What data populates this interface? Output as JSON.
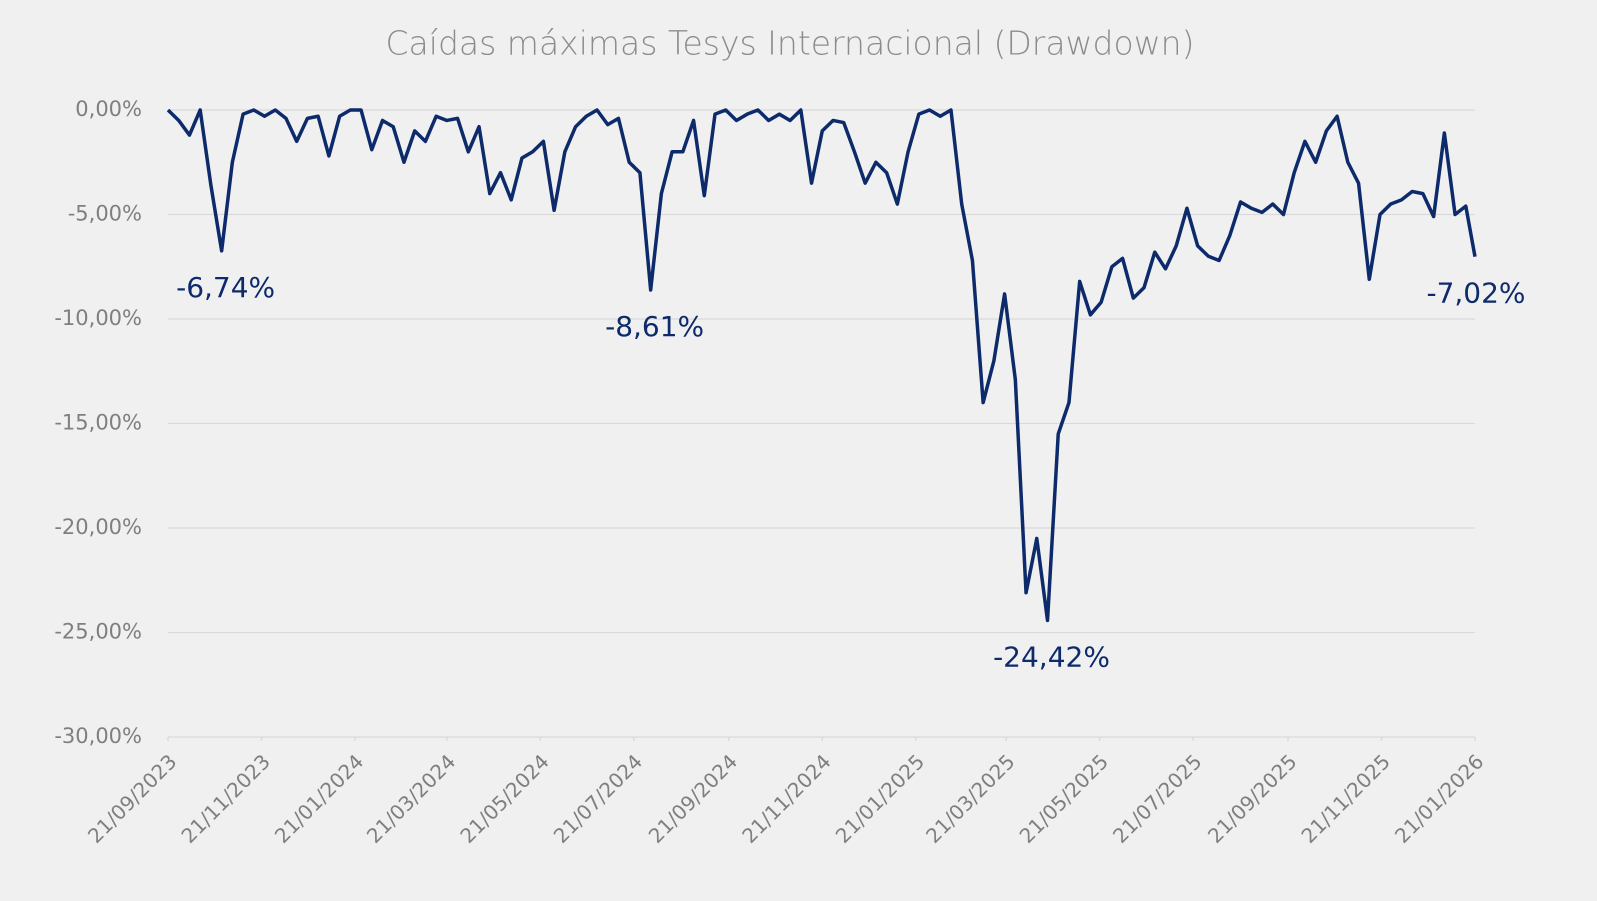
{
  "chart_data": {
    "type": "line",
    "title": "Caídas máximas Tesys Internacional (Drawdown)",
    "color": "#0d2a6b",
    "grid": true,
    "x": [
      "2023-09-21",
      "2023-09-28",
      "2023-10-05",
      "2023-10-12",
      "2023-10-19",
      "2023-10-26",
      "2023-11-02",
      "2023-11-09",
      "2023-11-16",
      "2023-11-23",
      "2023-11-30",
      "2023-12-07",
      "2023-12-14",
      "2023-12-21",
      "2023-12-28",
      "2024-01-04",
      "2024-01-11",
      "2024-01-18",
      "2024-01-25",
      "2024-02-01",
      "2024-02-08",
      "2024-02-15",
      "2024-02-22",
      "2024-02-29",
      "2024-03-07",
      "2024-03-14",
      "2024-03-21",
      "2024-03-28",
      "2024-04-04",
      "2024-04-11",
      "2024-04-18",
      "2024-04-25",
      "2024-05-02",
      "2024-05-09",
      "2024-05-16",
      "2024-05-23",
      "2024-05-30",
      "2024-06-06",
      "2024-06-13",
      "2024-06-20",
      "2024-06-27",
      "2024-07-04",
      "2024-07-11",
      "2024-07-18",
      "2024-07-25",
      "2024-08-01",
      "2024-08-08",
      "2024-08-15",
      "2024-08-22",
      "2024-08-29",
      "2024-09-05",
      "2024-09-12",
      "2024-09-19",
      "2024-09-26",
      "2024-10-03",
      "2024-10-10",
      "2024-10-17",
      "2024-10-24",
      "2024-10-31",
      "2024-11-07",
      "2024-11-14",
      "2024-11-21",
      "2024-11-28",
      "2024-12-05",
      "2024-12-12",
      "2024-12-19",
      "2024-12-26",
      "2025-01-02",
      "2025-01-09",
      "2025-01-16",
      "2025-01-23",
      "2025-01-30",
      "2025-02-06",
      "2025-02-13",
      "2025-02-20",
      "2025-02-27",
      "2025-03-06",
      "2025-03-13",
      "2025-03-20",
      "2025-03-27",
      "2025-04-03",
      "2025-04-10",
      "2025-04-17",
      "2025-04-24",
      "2025-05-01",
      "2025-05-08",
      "2025-05-15",
      "2025-05-22",
      "2025-05-29",
      "2025-06-05",
      "2025-06-12",
      "2025-06-19",
      "2025-06-26",
      "2025-07-03",
      "2025-07-10",
      "2025-07-17",
      "2025-07-24",
      "2025-07-31",
      "2025-08-07",
      "2025-08-14",
      "2025-08-21",
      "2025-08-28",
      "2025-09-04",
      "2025-09-11",
      "2025-09-18",
      "2025-09-25",
      "2025-10-02",
      "2025-10-09",
      "2025-10-16",
      "2025-10-23",
      "2025-10-30",
      "2025-11-06",
      "2025-11-13",
      "2025-11-20",
      "2025-11-27",
      "2025-12-04",
      "2025-12-11",
      "2025-12-18",
      "2025-12-25",
      "2026-01-01",
      "2026-01-08",
      "2026-01-15",
      "2026-01-21"
    ],
    "values": [
      0,
      -0.5,
      -1.2,
      0,
      -3.6,
      -6.74,
      -2.5,
      -0.2,
      0,
      -0.3,
      0,
      -0.4,
      -1.5,
      -0.4,
      -0.3,
      -2.2,
      -0.3,
      0,
      0,
      -1.9,
      -0.5,
      -0.8,
      -2.5,
      -1,
      -1.5,
      -0.3,
      -0.5,
      -0.4,
      -2,
      -0.8,
      -4,
      -3,
      -4.3,
      -2.3,
      -2,
      -1.5,
      -4.8,
      -2,
      -0.8,
      -0.3,
      0,
      -0.7,
      -0.4,
      -2.5,
      -3,
      -8.61,
      -4,
      -2,
      -2,
      -0.5,
      -4.1,
      -0.2,
      0,
      -0.5,
      -0.2,
      0,
      -0.5,
      -0.2,
      -0.5,
      0,
      -3.5,
      -1,
      -0.5,
      -0.6,
      -2,
      -3.5,
      -2.5,
      -3,
      -4.5,
      -2,
      -0.2,
      0,
      -0.3,
      0,
      -4.5,
      -7.2,
      -14,
      -12,
      -8.8,
      -12.9,
      -23.1,
      -20.5,
      -24.42,
      -15.5,
      -14,
      -8.2,
      -9.8,
      -9.2,
      -7.5,
      -7.1,
      -9,
      -8.5,
      -6.8,
      -7.6,
      -6.5,
      -4.7,
      -6.5,
      -7,
      -7.2,
      -6,
      -4.4,
      -4.7,
      -4.9,
      -4.5,
      -5,
      -3,
      -1.5,
      -2.5,
      -1,
      -0.3,
      -2.5,
      -3.5,
      -8.1,
      -5,
      -4.5,
      -4.3,
      -3.9,
      -4,
      -5.1,
      -1.1,
      -5,
      -4.6,
      -7.02
    ],
    "xlim": [
      "2023-09-21",
      "2026-01-21"
    ],
    "xticks": [
      {
        "value": "2023-09-21",
        "label": "21/09/2023"
      },
      {
        "value": "2023-11-21",
        "label": "21/11/2023"
      },
      {
        "value": "2024-01-21",
        "label": "21/01/2024"
      },
      {
        "value": "2024-03-21",
        "label": "21/03/2024"
      },
      {
        "value": "2024-05-21",
        "label": "21/05/2024"
      },
      {
        "value": "2024-07-21",
        "label": "21/07/2024"
      },
      {
        "value": "2024-09-21",
        "label": "21/09/2024"
      },
      {
        "value": "2024-11-21",
        "label": "21/11/2024"
      },
      {
        "value": "2025-01-21",
        "label": "21/01/2025"
      },
      {
        "value": "2025-03-21",
        "label": "21/03/2025"
      },
      {
        "value": "2025-05-21",
        "label": "21/05/2025"
      },
      {
        "value": "2025-07-21",
        "label": "21/07/2025"
      },
      {
        "value": "2025-09-21",
        "label": "21/09/2025"
      },
      {
        "value": "2025-11-21",
        "label": "21/11/2025"
      },
      {
        "value": "2026-01-21",
        "label": "21/01/2026"
      }
    ],
    "ylim": [
      -30,
      0
    ],
    "yticks": [
      {
        "value": 0,
        "label": "0,00%"
      },
      {
        "value": -5,
        "label": "-5,00%"
      },
      {
        "value": -10,
        "label": "-10,00%"
      },
      {
        "value": -15,
        "label": "-15,00%"
      },
      {
        "value": -20,
        "label": "-20,00%"
      },
      {
        "value": -25,
        "label": "-25,00%"
      },
      {
        "value": -30,
        "label": "-30,00%"
      }
    ],
    "annotations": [
      {
        "x": "2023-10-26",
        "value": -6.74,
        "label": "-6,74%"
      },
      {
        "x": "2024-08-01",
        "value": -8.61,
        "label": "-8,61%"
      },
      {
        "x": "2025-04-17",
        "value": -24.42,
        "label": "-24,42%"
      },
      {
        "x": "2026-01-21",
        "value": -7.02,
        "label": "-7,02%"
      }
    ]
  }
}
